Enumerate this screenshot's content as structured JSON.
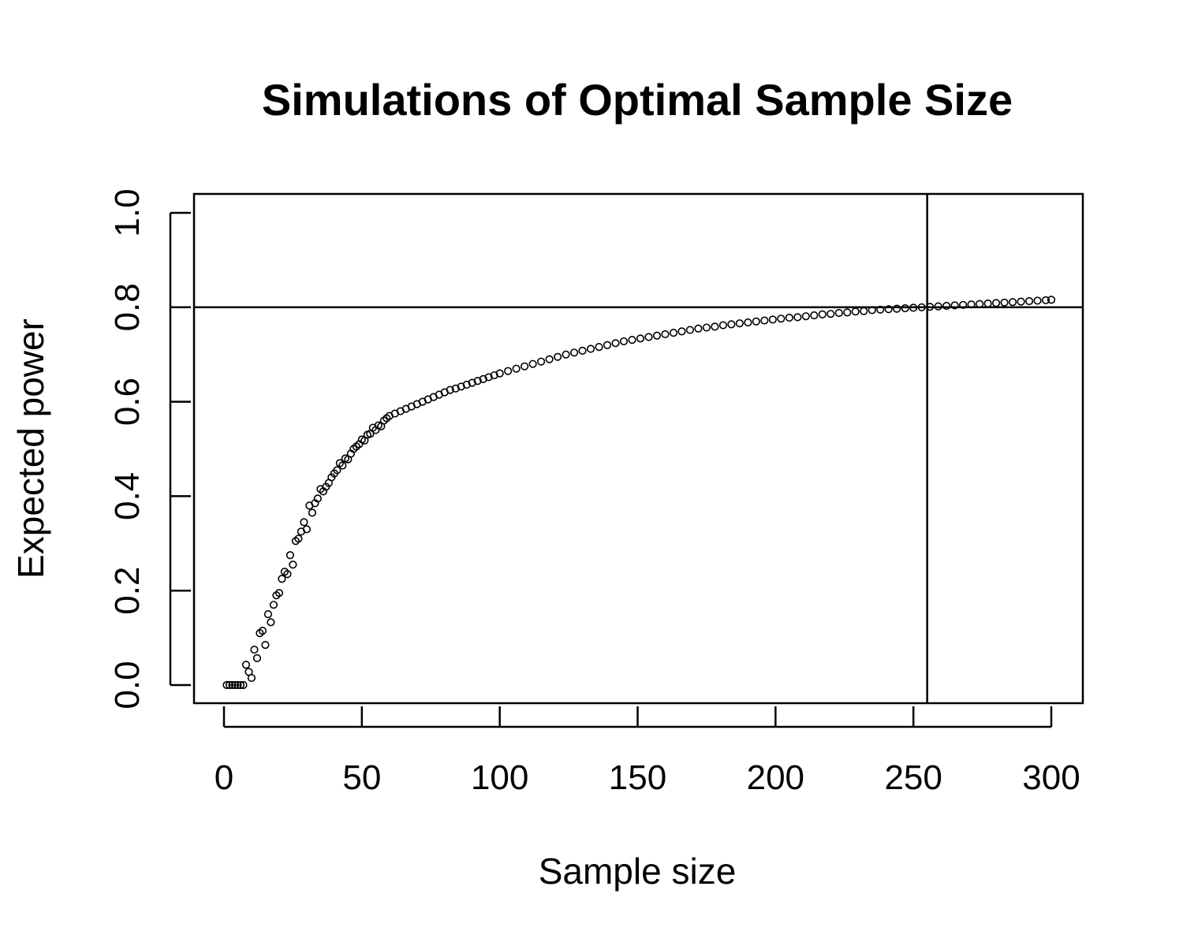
{
  "chart_data": {
    "type": "scatter",
    "title": "Simulations of Optimal Sample Size",
    "xlabel": "Sample size",
    "ylabel": "Expected power",
    "xlim": [
      0,
      300
    ],
    "ylim": [
      0,
      1
    ],
    "x_ticks": [
      0,
      50,
      100,
      150,
      200,
      250,
      300
    ],
    "y_ticks": [
      0.0,
      0.2,
      0.4,
      0.6,
      0.8,
      1.0
    ],
    "x_tick_labels": [
      "0",
      "50",
      "100",
      "150",
      "200",
      "250",
      "300"
    ],
    "y_tick_labels": [
      "0.0",
      "0.2",
      "0.4",
      "0.6",
      "0.8",
      "1.0"
    ],
    "reference_lines": {
      "horizontal_y": 0.8,
      "vertical_x": 255
    },
    "grid": false,
    "legend": "none",
    "series": [
      {
        "marker": "open-circle",
        "points": [
          [
            1,
            0.0
          ],
          [
            2,
            0.0
          ],
          [
            3,
            0.0
          ],
          [
            4,
            0.0
          ],
          [
            5,
            0.0
          ],
          [
            6,
            0.0
          ],
          [
            7,
            0.0
          ],
          [
            8,
            0.043
          ],
          [
            9,
            0.028
          ],
          [
            10,
            0.015
          ],
          [
            11,
            0.075
          ],
          [
            12,
            0.057
          ],
          [
            13,
            0.11
          ],
          [
            14,
            0.115
          ],
          [
            15,
            0.085
          ],
          [
            16,
            0.15
          ],
          [
            17,
            0.133
          ],
          [
            18,
            0.17
          ],
          [
            19,
            0.19
          ],
          [
            20,
            0.195
          ],
          [
            21,
            0.225
          ],
          [
            22,
            0.24
          ],
          [
            23,
            0.235
          ],
          [
            24,
            0.275
          ],
          [
            25,
            0.255
          ],
          [
            26,
            0.305
          ],
          [
            27,
            0.31
          ],
          [
            28,
            0.325
          ],
          [
            29,
            0.345
          ],
          [
            30,
            0.33
          ],
          [
            31,
            0.38
          ],
          [
            32,
            0.365
          ],
          [
            33,
            0.385
          ],
          [
            34,
            0.395
          ],
          [
            35,
            0.415
          ],
          [
            36,
            0.41
          ],
          [
            37,
            0.42
          ],
          [
            38,
            0.428
          ],
          [
            39,
            0.44
          ],
          [
            40,
            0.448
          ],
          [
            41,
            0.455
          ],
          [
            42,
            0.47
          ],
          [
            43,
            0.465
          ],
          [
            44,
            0.48
          ],
          [
            45,
            0.478
          ],
          [
            46,
            0.49
          ],
          [
            47,
            0.5
          ],
          [
            48,
            0.505
          ],
          [
            49,
            0.51
          ],
          [
            50,
            0.52
          ],
          [
            51,
            0.518
          ],
          [
            52,
            0.53
          ],
          [
            53,
            0.532
          ],
          [
            54,
            0.545
          ],
          [
            55,
            0.54
          ],
          [
            56,
            0.55
          ],
          [
            57,
            0.548
          ],
          [
            58,
            0.56
          ],
          [
            59,
            0.565
          ],
          [
            60,
            0.57
          ],
          [
            62,
            0.575
          ],
          [
            64,
            0.58
          ],
          [
            66,
            0.585
          ],
          [
            68,
            0.59
          ],
          [
            70,
            0.595
          ],
          [
            72,
            0.6
          ],
          [
            74,
            0.605
          ],
          [
            76,
            0.61
          ],
          [
            78,
            0.615
          ],
          [
            80,
            0.62
          ],
          [
            82,
            0.625
          ],
          [
            84,
            0.628
          ],
          [
            86,
            0.632
          ],
          [
            88,
            0.636
          ],
          [
            90,
            0.64
          ],
          [
            92,
            0.644
          ],
          [
            94,
            0.648
          ],
          [
            96,
            0.652
          ],
          [
            98,
            0.656
          ],
          [
            100,
            0.66
          ],
          [
            103,
            0.665
          ],
          [
            106,
            0.67
          ],
          [
            109,
            0.675
          ],
          [
            112,
            0.68
          ],
          [
            115,
            0.685
          ],
          [
            118,
            0.69
          ],
          [
            121,
            0.695
          ],
          [
            124,
            0.7
          ],
          [
            127,
            0.704
          ],
          [
            130,
            0.708
          ],
          [
            133,
            0.712
          ],
          [
            136,
            0.716
          ],
          [
            139,
            0.72
          ],
          [
            142,
            0.724
          ],
          [
            145,
            0.728
          ],
          [
            148,
            0.731
          ],
          [
            151,
            0.734
          ],
          [
            154,
            0.737
          ],
          [
            157,
            0.74
          ],
          [
            160,
            0.743
          ],
          [
            163,
            0.746
          ],
          [
            166,
            0.749
          ],
          [
            169,
            0.752
          ],
          [
            172,
            0.755
          ],
          [
            175,
            0.757
          ],
          [
            178,
            0.759
          ],
          [
            181,
            0.762
          ],
          [
            184,
            0.764
          ],
          [
            187,
            0.766
          ],
          [
            190,
            0.768
          ],
          [
            193,
            0.77
          ],
          [
            196,
            0.772
          ],
          [
            199,
            0.774
          ],
          [
            202,
            0.776
          ],
          [
            205,
            0.778
          ],
          [
            208,
            0.779
          ],
          [
            211,
            0.781
          ],
          [
            214,
            0.783
          ],
          [
            217,
            0.785
          ],
          [
            220,
            0.786
          ],
          [
            223,
            0.788
          ],
          [
            226,
            0.789
          ],
          [
            229,
            0.791
          ],
          [
            232,
            0.792
          ],
          [
            235,
            0.794
          ],
          [
            238,
            0.795
          ],
          [
            241,
            0.796
          ],
          [
            244,
            0.797
          ],
          [
            247,
            0.798
          ],
          [
            250,
            0.799
          ],
          [
            253,
            0.8
          ],
          [
            256,
            0.801
          ],
          [
            259,
            0.802
          ],
          [
            262,
            0.803
          ],
          [
            265,
            0.804
          ],
          [
            268,
            0.805
          ],
          [
            271,
            0.806
          ],
          [
            274,
            0.807
          ],
          [
            277,
            0.808
          ],
          [
            280,
            0.809
          ],
          [
            283,
            0.81
          ],
          [
            286,
            0.811
          ],
          [
            289,
            0.812
          ],
          [
            292,
            0.813
          ],
          [
            295,
            0.814
          ],
          [
            298,
            0.815
          ],
          [
            300,
            0.816
          ]
        ]
      }
    ]
  }
}
